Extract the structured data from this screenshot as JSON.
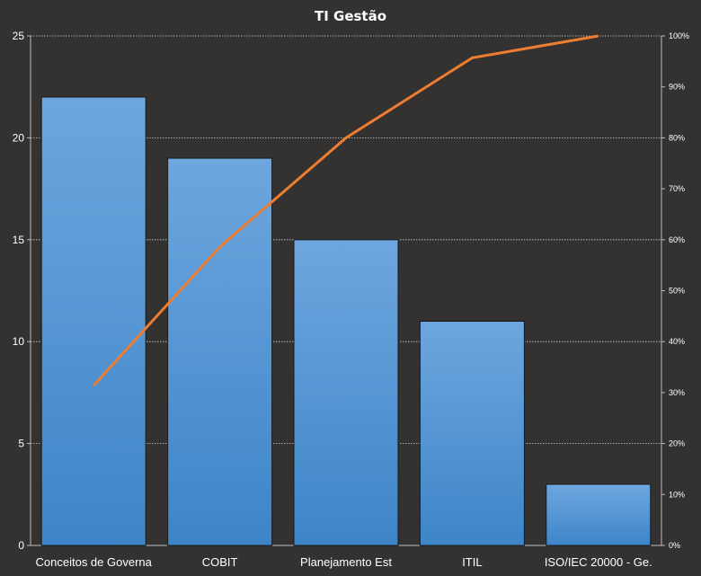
{
  "chart_data": {
    "type": "bar",
    "title": "TI Gestão",
    "categories": [
      "Conceitos de Governa",
      "COBIT",
      "Planejamento Est",
      "ITIL",
      "ISO/IEC 20000 - Ge."
    ],
    "series": [
      {
        "type": "bar",
        "axis": "left",
        "values": [
          22,
          19,
          15,
          11,
          3
        ]
      },
      {
        "type": "line",
        "axis": "right",
        "values": [
          31.4,
          58.6,
          80.0,
          95.7,
          100.0
        ]
      }
    ],
    "ylim": [
      0,
      25
    ],
    "yticks": [
      "0",
      "5",
      "10",
      "15",
      "20",
      "25"
    ],
    "y2lim": [
      0,
      100
    ],
    "y2ticks": [
      "0%",
      "10%",
      "20%",
      "30%",
      "40%",
      "50%",
      "60%",
      "70%",
      "80%",
      "90%",
      "100%"
    ],
    "grid": true,
    "legend": "none",
    "colors": {
      "bar": "#5b9bd5",
      "line": "#ed7d31",
      "background": "#333231",
      "grid": "#d0d0d0",
      "text": "#ffffff"
    }
  }
}
